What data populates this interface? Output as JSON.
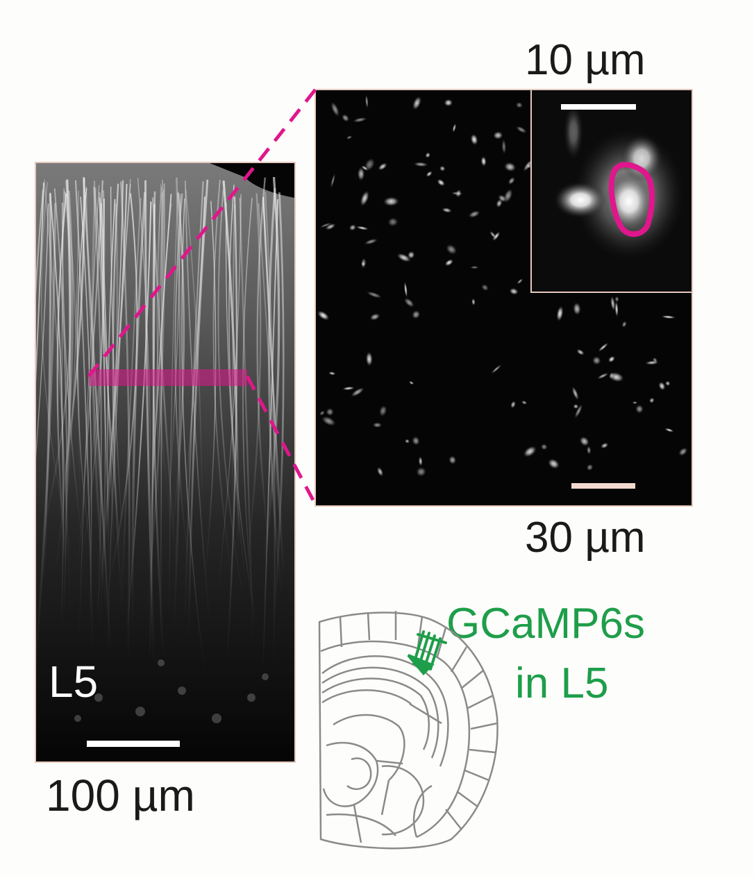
{
  "figure": {
    "scalebar_inset_label": "10 µm",
    "scalebar_mid_label": "30 µm",
    "scalebar_left_label": "100 µm",
    "layer_label": "L5",
    "expression_line1": "GCaMP6s",
    "expression_line2": "in L5"
  },
  "colors": {
    "magenta": "#e0168c",
    "green": "#1e9e4a",
    "atlas_gray": "#8a8a8a",
    "frame": "#e7c9bd"
  },
  "icons": {
    "left_panel": "dendrite-image-icon",
    "mid_panel": "dendrite-cross-section-icon",
    "inset_panel": "roi-zoom-icon",
    "atlas": "brain-atlas-icon"
  }
}
